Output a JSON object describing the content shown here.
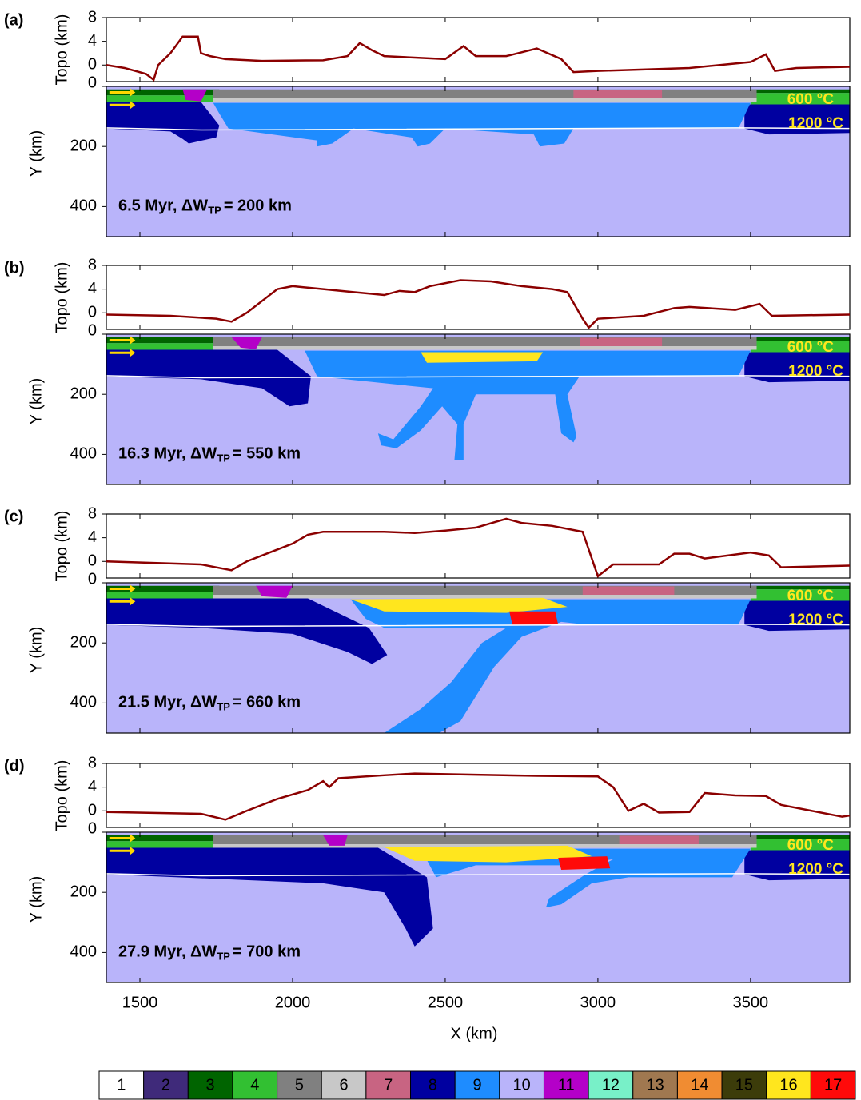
{
  "chart_data": [
    {
      "type": "line",
      "label": "(a)",
      "ylabel": "Topo (km)",
      "color": "#8b0000",
      "x": [
        1390,
        1450,
        1520,
        1545,
        1560,
        1600,
        1640,
        1690,
        1700,
        1730,
        1780,
        1900,
        2100,
        2180,
        2220,
        2260,
        2300,
        2500,
        2560,
        2600,
        2700,
        2800,
        2880,
        2920,
        3000,
        3300,
        3500,
        3550,
        3580,
        3650,
        3825
      ],
      "values": [
        0,
        -0.5,
        -1.5,
        -2.5,
        0,
        2,
        4.8,
        4.8,
        2,
        1.5,
        1,
        0.7,
        0.8,
        1.5,
        3.7,
        2.5,
        1.5,
        1,
        3.2,
        1.5,
        1.5,
        2.8,
        1,
        -1.2,
        -1,
        -0.5,
        0.5,
        1.8,
        -1,
        -0.5,
        -0.3
      ],
      "xlim": [
        1390,
        3825
      ],
      "xticks": [
        1500,
        2000,
        2500,
        3000,
        3500
      ],
      "ylim": [
        -2.8,
        8
      ],
      "yticks": [
        0,
        4,
        8
      ],
      "section": {
        "type": "section",
        "ylabel": "Y (km)",
        "ylim": [
          0,
          500
        ],
        "yticks": [
          0,
          200,
          400
        ],
        "time": "6.5 Myr, ΔW",
        "sub": "TP",
        "width": "= 200 km",
        "isotherms": [
          "600 °C",
          "1200 °C"
        ]
      }
    },
    {
      "type": "line",
      "label": "(b)",
      "ylabel": "Topo (km)",
      "color": "#8b0000",
      "x": [
        1390,
        1600,
        1750,
        1800,
        1850,
        1900,
        1950,
        2000,
        2100,
        2200,
        2300,
        2350,
        2400,
        2450,
        2550,
        2650,
        2750,
        2850,
        2900,
        2950,
        2970,
        3000,
        3150,
        3250,
        3300,
        3450,
        3530,
        3570,
        3825
      ],
      "values": [
        -0.3,
        -0.5,
        -1,
        -1.5,
        0,
        2,
        4,
        4.5,
        4,
        3.5,
        3,
        3.7,
        3.5,
        4.5,
        5.5,
        5.3,
        4.5,
        4,
        3.5,
        -1,
        -2.5,
        -1,
        -0.5,
        0.8,
        1,
        0.5,
        1.5,
        -0.5,
        -0.3
      ],
      "xlim": [
        1390,
        3825
      ],
      "xticks": [
        1500,
        2000,
        2500,
        3000,
        3500
      ],
      "ylim": [
        -2.8,
        8
      ],
      "yticks": [
        0,
        4,
        8
      ],
      "section": {
        "type": "section",
        "ylabel": "Y (km)",
        "ylim": [
          0,
          500
        ],
        "yticks": [
          0,
          200,
          400
        ],
        "time": "16.3 Myr, ΔW",
        "sub": "TP",
        "width": "= 550 km",
        "isotherms": [
          "600 °C",
          "1200 °C"
        ]
      }
    },
    {
      "type": "line",
      "label": "(c)",
      "ylabel": "Topo (km)",
      "color": "#8b0000",
      "x": [
        1390,
        1700,
        1800,
        1850,
        1950,
        2000,
        2050,
        2100,
        2200,
        2300,
        2400,
        2500,
        2600,
        2700,
        2750,
        2850,
        2950,
        3000,
        3050,
        3200,
        3250,
        3300,
        3350,
        3500,
        3560,
        3600,
        3825
      ],
      "values": [
        0,
        -0.5,
        -1.5,
        0,
        2,
        3,
        4.5,
        5,
        5,
        5,
        4.8,
        5.2,
        5.7,
        7.2,
        6.5,
        6,
        5,
        -2.5,
        -0.5,
        -0.5,
        1.3,
        1.3,
        0.5,
        1.5,
        1,
        -1,
        -0.7
      ],
      "xlim": [
        1390,
        3825
      ],
      "xticks": [
        1500,
        2000,
        2500,
        3000,
        3500
      ],
      "ylim": [
        -2.8,
        8
      ],
      "yticks": [
        0,
        4,
        8
      ],
      "section": {
        "type": "section",
        "ylabel": "Y (km)",
        "ylim": [
          0,
          500
        ],
        "yticks": [
          0,
          200,
          400
        ],
        "time": "21.5 Myr, ΔW",
        "sub": "TP",
        "width": "= 660 km",
        "isotherms": [
          "600 °C",
          "1200 °C"
        ]
      }
    },
    {
      "type": "line",
      "label": "(d)",
      "ylabel": "Topo (km)",
      "color": "#8b0000",
      "x": [
        1390,
        1700,
        1780,
        1850,
        1950,
        2050,
        2100,
        2120,
        2150,
        2300,
        2400,
        2600,
        2800,
        3000,
        3050,
        3100,
        3150,
        3200,
        3300,
        3350,
        3450,
        3550,
        3600,
        3700,
        3800,
        3825
      ],
      "values": [
        -0.2,
        -0.5,
        -1.5,
        0,
        2,
        3.5,
        5,
        4,
        5.5,
        6,
        6.3,
        6.1,
        5.9,
        5.8,
        4,
        0,
        1.2,
        -0.3,
        -0.2,
        3,
        2.6,
        2.5,
        1,
        0,
        -1,
        -0.8
      ],
      "xlim": [
        1390,
        3825
      ],
      "xticks": [
        1500,
        2000,
        2500,
        3000,
        3500
      ],
      "ylim": [
        -2.8,
        8
      ],
      "yticks": [
        0,
        4,
        8
      ],
      "section": {
        "type": "section",
        "ylabel": "Y (km)",
        "ylim": [
          0,
          500
        ],
        "yticks": [
          0,
          200,
          400
        ],
        "time": "27.9 Myr, ΔW",
        "sub": "TP",
        "width": "= 700 km",
        "isotherms": [
          "600 °C",
          "1200 °C"
        ]
      }
    }
  ],
  "x_label": "X (km)",
  "legend": {
    "labels": [
      "1",
      "2",
      "3",
      "4",
      "5",
      "6",
      "7",
      "8",
      "9",
      "10",
      "11",
      "12",
      "13",
      "14",
      "15",
      "16",
      "17"
    ],
    "colors": [
      "#ffffff",
      "#3f2a7a",
      "#006400",
      "#32c032",
      "#808080",
      "#c8c8c8",
      "#c86482",
      "#0000a0",
      "#1e8cff",
      "#b9b4fa",
      "#b400c8",
      "#78f0c8",
      "#a07850",
      "#f08c32",
      "#3c3c0a",
      "#ffe61e",
      "#ff0a0a"
    ]
  }
}
